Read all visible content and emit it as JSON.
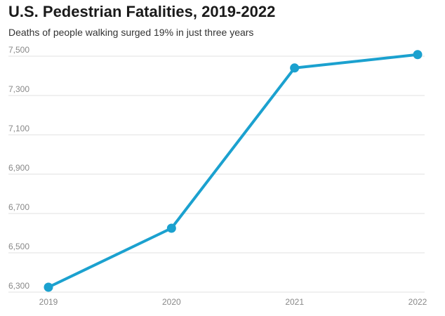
{
  "chart_data": {
    "type": "line",
    "title": "U.S. Pedestrian Fatalities, 2019-2022",
    "subtitle": "Deaths of people walking surged 19% in just three years",
    "categories": [
      "2019",
      "2020",
      "2021",
      "2022"
    ],
    "series": [
      {
        "values": [
          6325,
          6625,
          7440,
          7508
        ],
        "color": "#1ba1cf"
      }
    ],
    "y_ticks": [
      6300,
      6500,
      6700,
      6900,
      7100,
      7300,
      7500
    ],
    "y_tick_labels": [
      "6,300",
      "6,500",
      "6,700",
      "6,900",
      "7,100",
      "7,300",
      "7,500"
    ],
    "ylim": [
      6300,
      7500
    ],
    "grid": true,
    "xlabel": "",
    "ylabel": ""
  }
}
